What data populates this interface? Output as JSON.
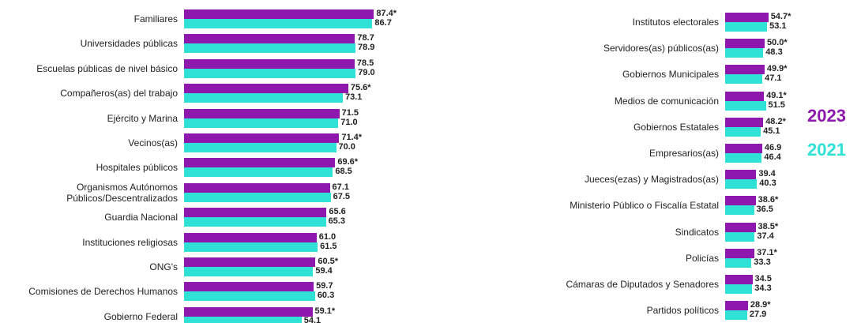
{
  "chart_data": [
    {
      "type": "bar",
      "orientation": "horizontal",
      "xlim": [
        0,
        100
      ],
      "categories": [
        "Familiares",
        "Universidades públicas",
        "Escuelas públicas de nivel básico",
        "Compañeros(as) del trabajo",
        "Ejército y Marina",
        "Vecinos(as)",
        "Hospitales públicos",
        "Organismos Autónomos\nPúblicos/Descentralizados",
        "Guardia Nacional",
        "Instituciones religiosas",
        "ONG's",
        "Comisiones de Derechos Humanos",
        "Gobierno Federal"
      ],
      "series": [
        {
          "name": "2023",
          "color": "#8e17ad",
          "values": [
            87.4,
            78.7,
            78.5,
            75.6,
            71.5,
            71.4,
            69.6,
            67.1,
            65.6,
            61.0,
            60.5,
            59.7,
            59.1
          ],
          "value_labels": [
            "87.4*",
            "78.7",
            "78.5",
            "75.6*",
            "71.5",
            "71.4*",
            "69.6*",
            "67.1",
            "65.6",
            "61.0",
            "60.5*",
            "59.7",
            "59.1*"
          ]
        },
        {
          "name": "2021",
          "color": "#30e2d6",
          "values": [
            86.7,
            78.9,
            79.0,
            73.1,
            71.0,
            70.0,
            68.5,
            67.5,
            65.3,
            61.5,
            59.4,
            60.3,
            54.1
          ],
          "value_labels": [
            "86.7",
            "78.9",
            "79.0",
            "73.1",
            "71.0",
            "70.0",
            "68.5",
            "67.5",
            "65.3",
            "61.5",
            "59.4",
            "60.3",
            "54.1"
          ]
        }
      ]
    },
    {
      "type": "bar",
      "orientation": "horizontal",
      "xlim": [
        0,
        100
      ],
      "categories": [
        "Institutos electorales",
        "Servidores(as) públicos(as)",
        "Gobiernos Municipales",
        "Medios de comunicación",
        "Gobiernos Estatales",
        "Empresarios(as)",
        "Jueces(ezas) y Magistrados(as)",
        "Ministerio Público o Fiscalía Estatal",
        "Sindicatos",
        "Policías",
        "Cámaras de Diputados y Senadores",
        "Partidos políticos"
      ],
      "series": [
        {
          "color": "#8e17ad",
          "values": [
            54.7,
            50.0,
            49.9,
            49.1,
            48.2,
            46.9,
            39.4,
            38.6,
            38.5,
            37.1,
            34.5,
            28.9
          ],
          "value_labels": [
            "54.7*",
            "50.0*",
            "49.9*",
            "49.1*",
            "48.2*",
            "46.9",
            "39.4",
            "38.6*",
            "38.5*",
            "37.1*",
            "34.5",
            "28.9*"
          ]
        },
        {
          "color": "#30e2d6",
          "values": [
            53.1,
            48.3,
            47.1,
            51.5,
            45.1,
            46.4,
            40.3,
            36.5,
            37.4,
            33.3,
            34.3,
            27.9
          ],
          "value_labels": [
            "53.1",
            "48.3",
            "47.1",
            "51.5",
            "45.1",
            "46.4",
            "40.3",
            "36.5",
            "37.4",
            "33.3",
            "34.3",
            "27.9"
          ]
        }
      ]
    }
  ]
}
